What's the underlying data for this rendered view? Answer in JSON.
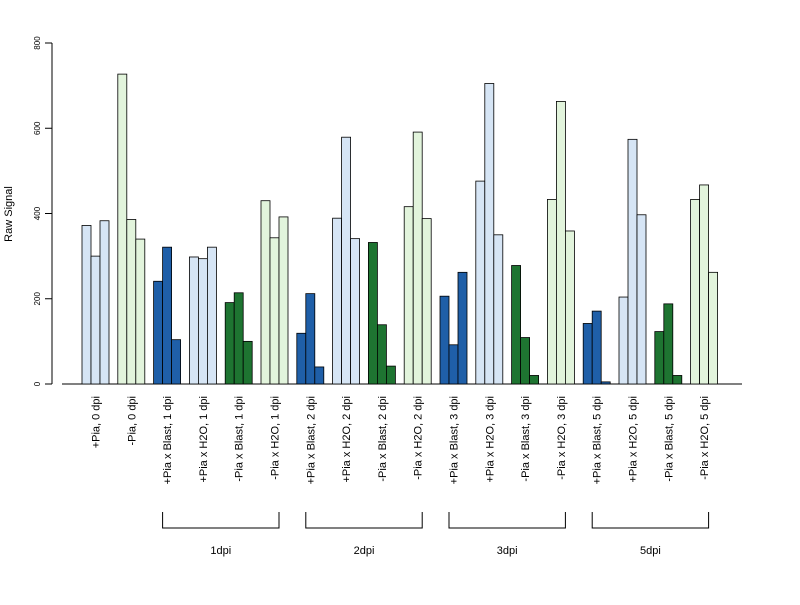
{
  "chart_data": {
    "type": "bar",
    "ylabel": "Raw Signal",
    "ylim": [
      0,
      800
    ],
    "yticks": [
      0,
      200,
      400,
      600,
      800
    ],
    "colors": {
      "light_blue": "#d6e5f5",
      "dark_blue": "#1f5fa8",
      "light_green": "#e2f4dc",
      "dark_green": "#1e7431",
      "bar_stroke": "#000000"
    },
    "groups": [
      {
        "label": "+Pia, 0 dpi",
        "color": "light_blue",
        "values": [
          372,
          300,
          383
        ]
      },
      {
        "label": "-Pia, 0 dpi",
        "color": "light_green",
        "values": [
          727,
          386,
          340
        ]
      },
      {
        "label": "+Pia x Blast, 1 dpi",
        "color": "dark_blue",
        "values": [
          241,
          321,
          104
        ]
      },
      {
        "label": "+Pia x H2O, 1 dpi",
        "color": "light_blue",
        "values": [
          298,
          294,
          321
        ]
      },
      {
        "label": "-Pia x Blast, 1 dpi",
        "color": "dark_green",
        "values": [
          191,
          214,
          100
        ]
      },
      {
        "label": "-Pia x H2O, 1 dpi",
        "color": "light_green",
        "values": [
          430,
          343,
          392
        ]
      },
      {
        "label": "+Pia x Blast, 2 dpi",
        "color": "dark_blue",
        "values": [
          119,
          212,
          40
        ]
      },
      {
        "label": "+Pia x H2O, 2 dpi",
        "color": "light_blue",
        "values": [
          389,
          579,
          341
        ]
      },
      {
        "label": "-Pia x Blast, 2 dpi",
        "color": "dark_green",
        "values": [
          332,
          139,
          42
        ]
      },
      {
        "label": "-Pia x H2O, 2 dpi",
        "color": "light_green",
        "values": [
          416,
          591,
          388
        ]
      },
      {
        "label": "+Pia x Blast, 3 dpi",
        "color": "dark_blue",
        "values": [
          206,
          92,
          262
        ]
      },
      {
        "label": "+Pia x H2O, 3 dpi",
        "color": "light_blue",
        "values": [
          476,
          705,
          350
        ]
      },
      {
        "label": "-Pia x Blast, 3 dpi",
        "color": "dark_green",
        "values": [
          278,
          109,
          20
        ]
      },
      {
        "label": "-Pia x H2O, 3 dpi",
        "color": "light_green",
        "values": [
          433,
          663,
          359
        ]
      },
      {
        "label": "+Pia x Blast, 5 dpi",
        "color": "dark_blue",
        "values": [
          142,
          171,
          5
        ]
      },
      {
        "label": "+Pia x H2O, 5 dpi",
        "color": "light_blue",
        "values": [
          204,
          574,
          397
        ]
      },
      {
        "label": "-Pia x Blast, 5 dpi",
        "color": "dark_green",
        "values": [
          123,
          188,
          20
        ]
      },
      {
        "label": "-Pia x H2O, 5 dpi",
        "color": "light_green",
        "values": [
          433,
          467,
          262
        ]
      }
    ],
    "brackets": [
      {
        "label": "1dpi",
        "from_group": 2,
        "to_group": 5
      },
      {
        "label": "2dpi",
        "from_group": 6,
        "to_group": 9
      },
      {
        "label": "3dpi",
        "from_group": 10,
        "to_group": 13
      },
      {
        "label": "5dpi",
        "from_group": 14,
        "to_group": 17
      }
    ]
  }
}
